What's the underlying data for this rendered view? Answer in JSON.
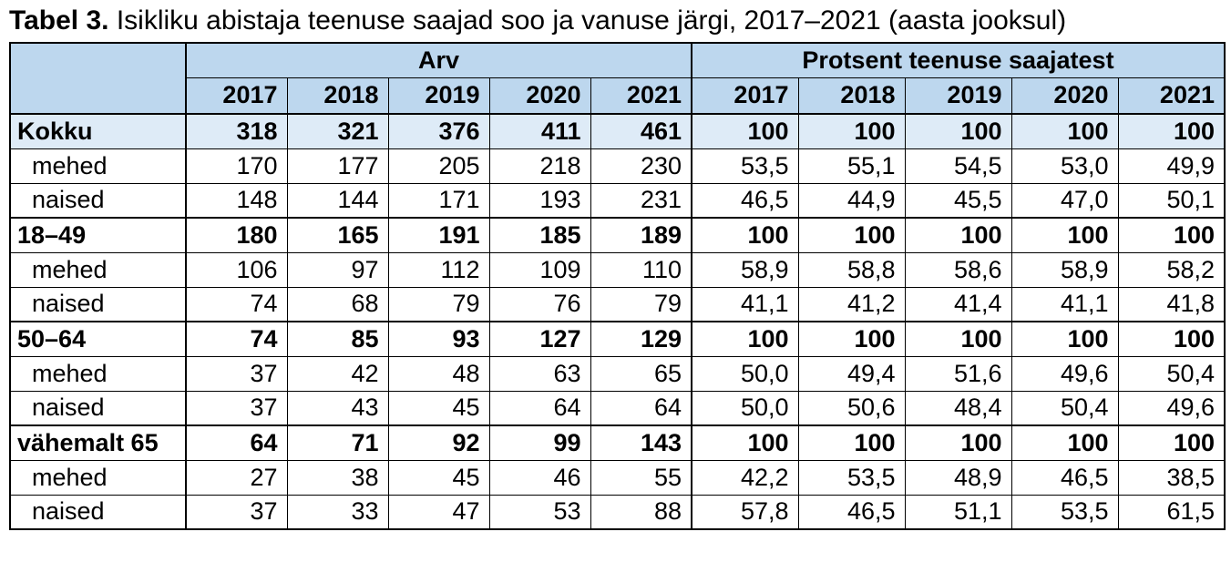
{
  "title": {
    "prefix": "Tabel 3.",
    "rest": " Isikliku abistaja teenuse saajad soo ja vanuse järgi, 2017–2021 (aasta jooksul)"
  },
  "colors": {
    "header_bg": "#BDD7EE",
    "total_row_bg": "#DEEBF7",
    "border": "#000000",
    "text": "#000000"
  },
  "table": {
    "section_headers": [
      "Arv",
      "Protsent teenuse saajatest"
    ],
    "years": [
      "2017",
      "2018",
      "2019",
      "2020",
      "2021"
    ],
    "rows": [
      {
        "label": "Kokku",
        "type": "total",
        "arv": [
          "318",
          "321",
          "376",
          "411",
          "461"
        ],
        "protsent": [
          "100",
          "100",
          "100",
          "100",
          "100"
        ]
      },
      {
        "label": "mehed",
        "type": "sub",
        "arv": [
          "170",
          "177",
          "205",
          "218",
          "230"
        ],
        "protsent": [
          "53,5",
          "55,1",
          "54,5",
          "53,0",
          "49,9"
        ]
      },
      {
        "label": "naised",
        "type": "sub",
        "arv": [
          "148",
          "144",
          "171",
          "193",
          "231"
        ],
        "protsent": [
          "46,5",
          "44,9",
          "45,5",
          "47,0",
          "50,1"
        ]
      },
      {
        "label": "18–49",
        "type": "group",
        "arv": [
          "180",
          "165",
          "191",
          "185",
          "189"
        ],
        "protsent": [
          "100",
          "100",
          "100",
          "100",
          "100"
        ]
      },
      {
        "label": "mehed",
        "type": "sub",
        "arv": [
          "106",
          "97",
          "112",
          "109",
          "110"
        ],
        "protsent": [
          "58,9",
          "58,8",
          "58,6",
          "58,9",
          "58,2"
        ]
      },
      {
        "label": "naised",
        "type": "sub",
        "arv": [
          "74",
          "68",
          "79",
          "76",
          "79"
        ],
        "protsent": [
          "41,1",
          "41,2",
          "41,4",
          "41,1",
          "41,8"
        ]
      },
      {
        "label": "50–64",
        "type": "group",
        "arv": [
          "74",
          "85",
          "93",
          "127",
          "129"
        ],
        "protsent": [
          "100",
          "100",
          "100",
          "100",
          "100"
        ]
      },
      {
        "label": "mehed",
        "type": "sub",
        "arv": [
          "37",
          "42",
          "48",
          "63",
          "65"
        ],
        "protsent": [
          "50,0",
          "49,4",
          "51,6",
          "49,6",
          "50,4"
        ]
      },
      {
        "label": "naised",
        "type": "sub",
        "arv": [
          "37",
          "43",
          "45",
          "64",
          "64"
        ],
        "protsent": [
          "50,0",
          "50,6",
          "48,4",
          "50,4",
          "49,6"
        ]
      },
      {
        "label": "vähemalt 65",
        "type": "group",
        "arv": [
          "64",
          "71",
          "92",
          "99",
          "143"
        ],
        "protsent": [
          "100",
          "100",
          "100",
          "100",
          "100"
        ]
      },
      {
        "label": "mehed",
        "type": "sub",
        "arv": [
          "27",
          "38",
          "45",
          "46",
          "55"
        ],
        "protsent": [
          "42,2",
          "53,5",
          "48,9",
          "46,5",
          "38,5"
        ]
      },
      {
        "label": "naised",
        "type": "sub",
        "arv": [
          "37",
          "33",
          "47",
          "53",
          "88"
        ],
        "protsent": [
          "57,8",
          "46,5",
          "51,1",
          "53,5",
          "61,5"
        ]
      }
    ]
  }
}
